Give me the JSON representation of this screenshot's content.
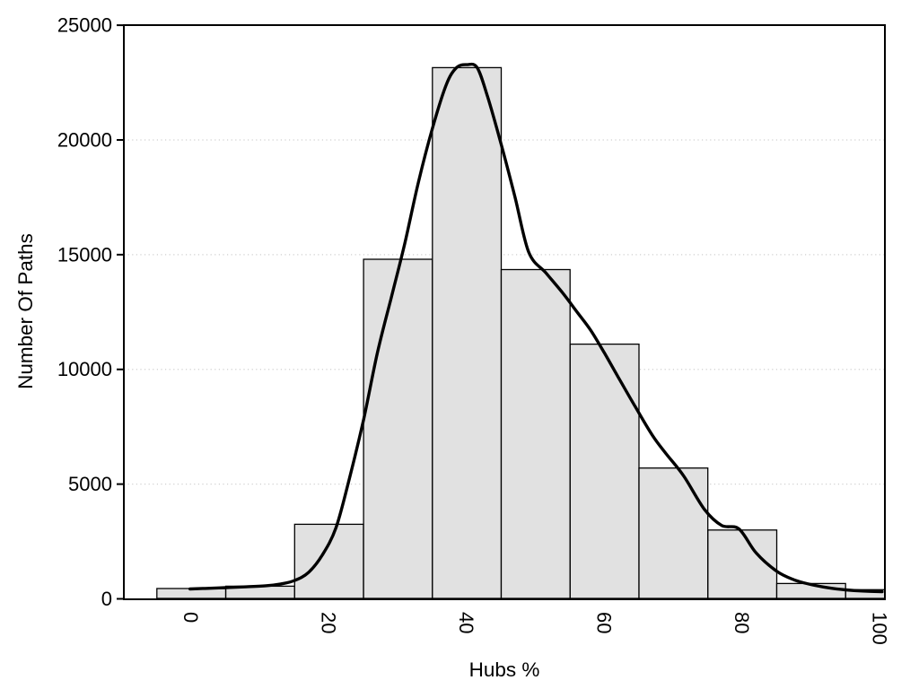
{
  "figure": {
    "background_color": "#ffffff"
  },
  "chart_data": {
    "type": "histogram_with_density_curve",
    "title": "",
    "xlabel": "Hubs %",
    "ylabel": "Number Of Paths",
    "xlim": [
      -9.8,
      100.7
    ],
    "ylim": [
      0,
      25000
    ],
    "x_ticks": [
      0,
      20,
      40,
      60,
      80,
      100
    ],
    "x_tick_labels": [
      "0",
      "20",
      "40",
      "60",
      "80",
      "100"
    ],
    "x_tick_label_rotation_deg": 90,
    "y_ticks": [
      0,
      5000,
      10000,
      15000,
      20000,
      25000
    ],
    "y_tick_labels": [
      "0",
      "5000",
      "10000",
      "15000",
      "20000",
      "25000"
    ],
    "grid": "horizontal dotted lines at y ticks",
    "legend_position": "none",
    "histogram": {
      "bin_width": 10,
      "bin_start": -5,
      "bin_centers": [
        0,
        10,
        20,
        30,
        40,
        50,
        60,
        70,
        80,
        90,
        100
      ],
      "counts": [
        450,
        550,
        3250,
        14800,
        23150,
        14350,
        11100,
        5700,
        3000,
        670,
        400
      ],
      "note": "last bin clipped at right plot border"
    },
    "density_curve": {
      "x": [
        -0.2,
        2,
        5,
        8,
        11,
        13,
        15,
        17,
        19,
        21,
        23,
        25,
        27,
        29,
        31,
        33,
        35,
        37,
        38.5,
        40,
        41.5,
        43,
        45,
        47,
        49,
        51.5,
        54,
        56,
        58,
        60,
        62,
        64.5,
        67,
        69,
        71.5,
        74.5,
        77,
        79.5,
        82,
        85,
        87.5,
        90,
        92.5,
        95,
        97.5,
        100.3
      ],
      "y": [
        430,
        455,
        490,
        525,
        575,
        650,
        800,
        1150,
        1900,
        3100,
        5300,
        7800,
        10700,
        13100,
        15500,
        18200,
        20500,
        22400,
        23150,
        23280,
        23150,
        21900,
        19800,
        17500,
        15100,
        14200,
        13300,
        12500,
        11700,
        10700,
        9650,
        8350,
        7100,
        6300,
        5350,
        3900,
        3200,
        3050,
        2000,
        1200,
        830,
        620,
        480,
        390,
        340,
        310
      ],
      "peak": {
        "x": 40,
        "y": 23280
      }
    },
    "colors": {
      "bar_fill": "#e1e1e1",
      "bar_stroke": "#000000",
      "curve": "#000000",
      "gridline": "#cfcfcf",
      "axis": "#000000",
      "text": "#000000"
    }
  }
}
